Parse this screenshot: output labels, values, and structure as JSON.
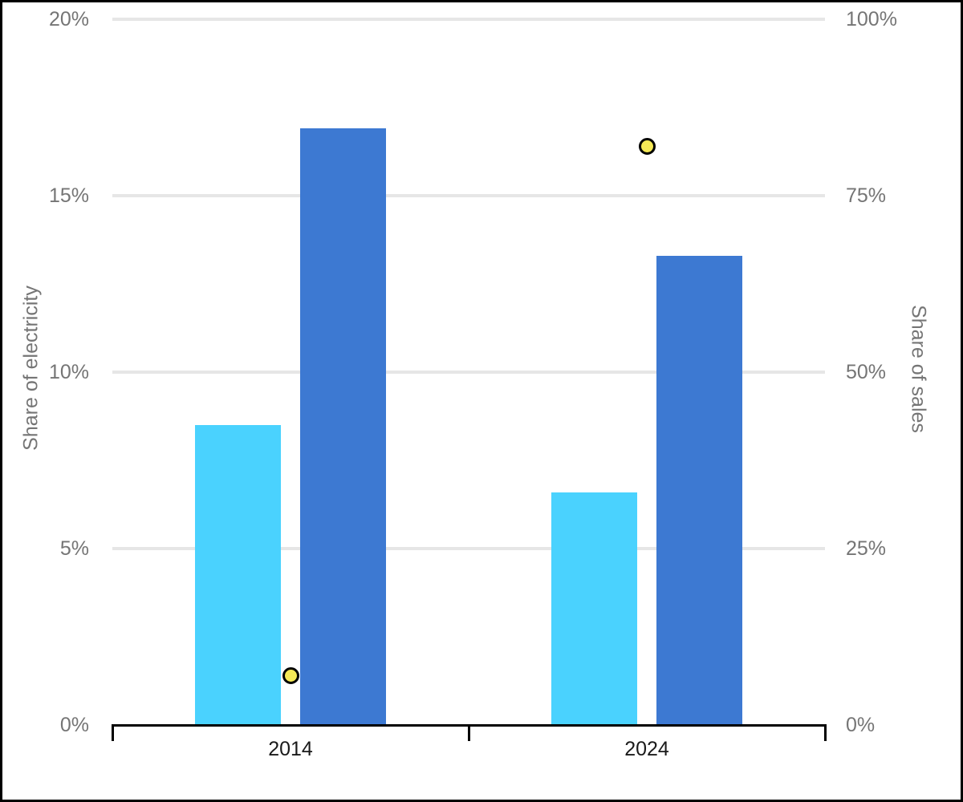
{
  "chart_data": {
    "type": "bar",
    "title": "",
    "categories": [
      "2014",
      "2024"
    ],
    "series": [
      {
        "name": "light-blue-bar",
        "type": "bar",
        "axis": "left",
        "color": "#4ad2fe",
        "values": [
          8.5,
          6.6
        ]
      },
      {
        "name": "dark-blue-bar",
        "type": "bar",
        "axis": "left",
        "color": "#3d79d2",
        "values": [
          16.9,
          13.3
        ]
      },
      {
        "name": "yellow-dot",
        "type": "scatter",
        "axis": "right",
        "color": "#f5e956",
        "border_color": "#000000",
        "values": [
          7,
          82
        ]
      }
    ],
    "left_axis": {
      "label": "Share of electricity",
      "min": 0,
      "max": 20,
      "ticks": [
        0,
        5,
        10,
        15,
        20
      ],
      "tick_labels": [
        "0%",
        "5%",
        "10%",
        "15%",
        "20%"
      ]
    },
    "right_axis": {
      "label": "Share of sales",
      "min": 0,
      "max": 100,
      "ticks": [
        0,
        25,
        50,
        75,
        100
      ],
      "tick_labels": [
        "0%",
        "25%",
        "50%",
        "75%",
        "100%"
      ]
    },
    "grid": true,
    "legend": "none",
    "colors": {
      "gridline": "#e6e6e6",
      "axis_label": "#757575",
      "category_label": "#1a1a1a",
      "axis_line": "#000000",
      "background": "#ffffff"
    }
  }
}
